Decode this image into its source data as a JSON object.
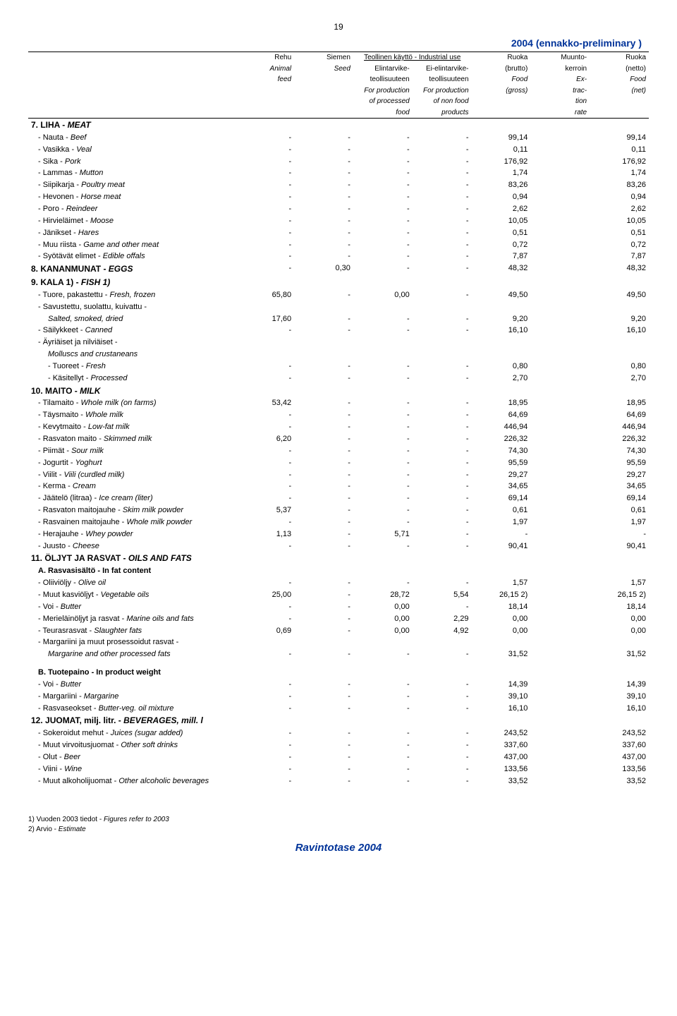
{
  "pageNumber": "19",
  "yearTitle": "2004 (ennakko-preliminary )",
  "headers": {
    "c1a": "Rehu",
    "c1b": "Animal",
    "c1c": "feed",
    "c2a": "Siemen",
    "c2b": "Seed",
    "span_a": "Teollinen käyttö - Industrial use",
    "c3a": "Elintarvike-",
    "c3b": "teollisuuteen",
    "c3c": "For production",
    "c3d": "of processed",
    "c3e": "food",
    "c4a": "Ei-elintarvike-",
    "c4b": "teollisuuteen",
    "c4c": "For production",
    "c4d": "of non food",
    "c4e": "products",
    "c5a": "Ruoka",
    "c5b": "(brutto)",
    "c5c": "Food",
    "c5d": "(gross)",
    "c6a": "Muunto-",
    "c6b": "kerroin",
    "c6c": "Ex-",
    "c6d": "trac-",
    "c6e": "tion",
    "c6f": "rate",
    "c7a": "Ruoka",
    "c7b": "(netto)",
    "c7c": "Food",
    "c7d": "(net)"
  },
  "sections": [
    {
      "title": "7. LIHA - ",
      "titleIt": "MEAT",
      "rows": [
        {
          "l": " - Nauta - ",
          "li": "Beef",
          "v": [
            "-",
            "-",
            "-",
            "-",
            "99,14",
            "",
            "99,14"
          ]
        },
        {
          "l": " - Vasikka - ",
          "li": "Veal",
          "v": [
            "-",
            "-",
            "-",
            "-",
            "0,11",
            "",
            "0,11"
          ]
        },
        {
          "l": " - Sika - ",
          "li": "Pork",
          "v": [
            "-",
            "-",
            "-",
            "-",
            "176,92",
            "",
            "176,92"
          ]
        },
        {
          "l": " - Lammas - ",
          "li": "Mutton",
          "v": [
            "-",
            "-",
            "-",
            "-",
            "1,74",
            "",
            "1,74"
          ]
        },
        {
          "l": " - Siipikarja - ",
          "li": "Poultry meat",
          "v": [
            "-",
            "-",
            "-",
            "-",
            "83,26",
            "",
            "83,26"
          ]
        },
        {
          "l": " - Hevonen - ",
          "li": "Horse meat",
          "v": [
            "-",
            "-",
            "-",
            "-",
            "0,94",
            "",
            "0,94"
          ]
        },
        {
          "l": " - Poro - ",
          "li": "Reindeer",
          "v": [
            "-",
            "-",
            "-",
            "-",
            "2,62",
            "",
            "2,62"
          ]
        },
        {
          "l": " - Hirvieläimet - ",
          "li": "Moose",
          "v": [
            "-",
            "-",
            "-",
            "-",
            "10,05",
            "",
            "10,05"
          ]
        },
        {
          "l": " - Jänikset - ",
          "li": "Hares",
          "v": [
            "-",
            "-",
            "-",
            "-",
            "0,51",
            "",
            "0,51"
          ]
        },
        {
          "l": " - Muu riista - ",
          "li": "Game and other meat",
          "v": [
            "-",
            "-",
            "-",
            "-",
            "0,72",
            "",
            "0,72"
          ]
        },
        {
          "l": " - Syötävät elimet - ",
          "li": "Edible offals",
          "v": [
            "-",
            "-",
            "-",
            "-",
            "7,87",
            "",
            "7,87"
          ]
        }
      ]
    },
    {
      "title": "8. KANANMUNAT - ",
      "titleIt": "EGGS",
      "inlineVals": [
        "-",
        "0,30",
        "-",
        "-",
        "48,32",
        "",
        "48,32"
      ]
    },
    {
      "title": "9. KALA 1) - ",
      "titleIt": "FISH 1)",
      "rows": [
        {
          "l": " - Tuore, pakastettu - ",
          "li": "Fresh, frozen",
          "v": [
            "65,80",
            "-",
            "0,00",
            "-",
            "49,50",
            "",
            "49,50"
          ]
        },
        {
          "l": " - Savustettu, suolattu, kuivattu -",
          "li": "",
          "v": [
            "",
            "",
            "",
            "",
            "",
            "",
            ""
          ]
        },
        {
          "l": "   ",
          "li": "Salted, smoked, dried",
          "indent": 1,
          "v": [
            "17,60",
            "-",
            "-",
            "-",
            "9,20",
            "",
            "9,20"
          ]
        },
        {
          "l": " - Säilykkeet - ",
          "li": "Canned",
          "v": [
            "-",
            "-",
            "-",
            "-",
            "16,10",
            "",
            "16,10"
          ]
        },
        {
          "l": " - Äyriäiset ja nilviäiset -",
          "li": "",
          "v": [
            "",
            "",
            "",
            "",
            "",
            "",
            ""
          ]
        },
        {
          "l": "   ",
          "li": "Molluscs and crustaneans",
          "indent": 1,
          "v": [
            "",
            "",
            "",
            "",
            "",
            "",
            ""
          ]
        },
        {
          "l": "   - Tuoreet - ",
          "li": "Fresh",
          "indent": 1,
          "v": [
            "-",
            "-",
            "-",
            "-",
            "0,80",
            "",
            "0,80"
          ]
        },
        {
          "l": "   - Käsitellyt - ",
          "li": "Processed",
          "indent": 1,
          "v": [
            "-",
            "-",
            "-",
            "-",
            "2,70",
            "",
            "2,70"
          ]
        }
      ]
    },
    {
      "title": "10. MAITO - ",
      "titleIt": "MILK",
      "rows": [
        {
          "l": " - Tilamaito - ",
          "li": "Whole milk (on farms)",
          "v": [
            "53,42",
            "-",
            "-",
            "-",
            "18,95",
            "",
            "18,95"
          ]
        },
        {
          "l": " - Täysmaito - ",
          "li": "Whole milk",
          "v": [
            "-",
            "-",
            "-",
            "-",
            "64,69",
            "",
            "64,69"
          ]
        },
        {
          "l": " - Kevytmaito - ",
          "li": "Low-fat milk",
          "v": [
            "-",
            "-",
            "-",
            "-",
            "446,94",
            "",
            "446,94"
          ]
        },
        {
          "l": " - Rasvaton maito - ",
          "li": "Skimmed milk",
          "v": [
            "6,20",
            "-",
            "-",
            "-",
            "226,32",
            "",
            "226,32"
          ]
        },
        {
          "l": " - Piimät - ",
          "li": "Sour milk",
          "v": [
            "-",
            "-",
            "-",
            "-",
            "74,30",
            "",
            "74,30"
          ]
        },
        {
          "l": " - Jogurtit - ",
          "li": "Yoghurt",
          "v": [
            "-",
            "-",
            "-",
            "-",
            "95,59",
            "",
            "95,59"
          ]
        },
        {
          "l": " - Viilit - ",
          "li": "Viili (curdled milk)",
          "v": [
            "-",
            "-",
            "-",
            "-",
            "29,27",
            "",
            "29,27"
          ]
        },
        {
          "l": " - Kerma - ",
          "li": "Cream",
          "v": [
            "-",
            "-",
            "-",
            "-",
            "34,65",
            "",
            "34,65"
          ]
        },
        {
          "l": " - Jäätelö (litraa) - ",
          "li": "Ice cream (liter)",
          "v": [
            "-",
            "-",
            "-",
            "-",
            "69,14",
            "",
            "69,14"
          ]
        },
        {
          "l": " - Rasvaton maitojauhe - ",
          "li": "Skim milk powder",
          "v": [
            "5,37",
            "-",
            "-",
            "-",
            "0,61",
            "",
            "0,61"
          ]
        },
        {
          "l": " - Rasvainen maitojauhe - ",
          "li": "Whole milk powder",
          "v": [
            "-",
            "-",
            "-",
            "-",
            "1,97",
            "",
            "1,97"
          ]
        },
        {
          "l": " - Herajauhe - ",
          "li": "Whey powder",
          "v": [
            "1,13",
            "-",
            "5,71",
            "-",
            "-",
            "",
            "-"
          ]
        },
        {
          "l": " - Juusto - ",
          "li": "Cheese",
          "v": [
            "-",
            "-",
            "-",
            "-",
            "90,41",
            "",
            "90,41"
          ]
        }
      ]
    },
    {
      "title": "11. ÖLJYT JA RASVAT - ",
      "titleIt": "OILS AND FATS",
      "rows": [
        {
          "l": "A. Rasvasisältö - ",
          "li": "In fat content",
          "bold": true,
          "v": [
            "",
            "",
            "",
            "",
            "",
            "",
            ""
          ]
        },
        {
          "l": " - Oliiviöljy - ",
          "li": "Olive oil",
          "v": [
            "-",
            "-",
            "-",
            "-",
            "1,57",
            "",
            "1,57"
          ]
        },
        {
          "l": " - Muut kasviöljyt - ",
          "li": "Vegetable oils",
          "v": [
            "25,00",
            "-",
            "28,72",
            "5,54",
            "26,15 2)",
            "",
            "26,15 2)"
          ]
        },
        {
          "l": " - Voi - ",
          "li": "Butter",
          "v": [
            "-",
            "-",
            "0,00",
            "-",
            "18,14",
            "",
            "18,14"
          ]
        },
        {
          "l": " - Merieläinöljyt ja rasvat - ",
          "li": "Marine oils and fats",
          "v": [
            "-",
            "-",
            "0,00",
            "2,29",
            "0,00",
            "",
            "0,00"
          ]
        },
        {
          "l": " - Teurasrasvat - ",
          "li": "Slaughter fats",
          "v": [
            "0,69",
            "-",
            "0,00",
            "4,92",
            "0,00",
            "",
            "0,00"
          ]
        },
        {
          "l": " - Margariini ja muut prosessoidut rasvat -",
          "li": "",
          "v": [
            "",
            "",
            "",
            "",
            "",
            "",
            ""
          ]
        },
        {
          "l": "   ",
          "li": "Margarine and other processed fats",
          "indent": 1,
          "v": [
            "-",
            "-",
            "-",
            "-",
            "31,52",
            "",
            "31,52"
          ]
        },
        {
          "l": "B. Tuotepaino - ",
          "li": "In product weight",
          "bold": true,
          "gap": true,
          "v": [
            "",
            "",
            "",
            "",
            "",
            "",
            ""
          ]
        },
        {
          "l": " - Voi - ",
          "li": "Butter",
          "v": [
            "-",
            "-",
            "-",
            "-",
            "14,39",
            "",
            "14,39"
          ]
        },
        {
          "l": " - Margariini - ",
          "li": "Margarine",
          "v": [
            "-",
            "-",
            "-",
            "-",
            "39,10",
            "",
            "39,10"
          ]
        },
        {
          "l": " - Rasvaseokset  - ",
          "li": "Butter-veg. oil mixture",
          "v": [
            "-",
            "-",
            "-",
            "-",
            "16,10",
            "",
            "16,10"
          ]
        }
      ]
    },
    {
      "title": "12. JUOMAT, milj. litr. - ",
      "titleIt": "BEVERAGES, mill. l",
      "rows": [
        {
          "l": " - Sokeroidut mehut - ",
          "li": "Juices (sugar added)",
          "v": [
            "-",
            "-",
            "-",
            "-",
            "243,52",
            "",
            "243,52"
          ]
        },
        {
          "l": " - Muut virvoitusjuomat - ",
          "li": "Other soft drinks",
          "v": [
            "-",
            "-",
            "-",
            "-",
            "337,60",
            "",
            "337,60"
          ]
        },
        {
          "l": " - Olut - ",
          "li": "Beer",
          "v": [
            "-",
            "-",
            "-",
            "-",
            "437,00",
            "",
            "437,00"
          ]
        },
        {
          "l": " - Viini - ",
          "li": "Wine",
          "v": [
            "-",
            "-",
            "-",
            "-",
            "133,56",
            "",
            "133,56"
          ]
        },
        {
          "l": " - Muut alkoholijuomat - ",
          "li": "Other alcoholic beverages",
          "v": [
            "-",
            "-",
            "-",
            "-",
            "33,52",
            "",
            "33,52"
          ]
        }
      ]
    }
  ],
  "footnotes": [
    "1) Vuoden 2003 tiedot - Figures refer to 2003",
    "2) Arvio - Estimate"
  ],
  "footerTitle": "Ravintotase 2004"
}
